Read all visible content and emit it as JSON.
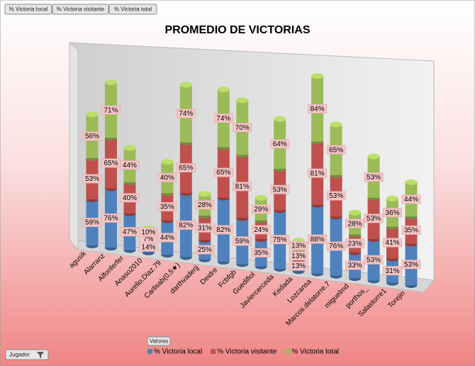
{
  "buttons": [
    "% Victoria local",
    "% Victoria visitante",
    "% Victoria total"
  ],
  "values_button": "Valores",
  "filter_button": "Jugador",
  "chart_data": {
    "type": "bar",
    "stacked": true,
    "title": "PROMEDIO DE VICTORIAS",
    "categories": [
      "agusik",
      "Alarranz",
      "Alfonferfer",
      "Anaso2010",
      "Aurelio.Diaz.79",
      "Carlisab(0,5★)",
      "darthvaderjj",
      "Deidre",
      "Fcbfgb",
      "Guedifiol",
      "Javiercerceda",
      "Kedada",
      "Lozcansa",
      "Marcos.delatorre.7",
      "miguelmd",
      "porthos_",
      "Salastorre1",
      "Torejin"
    ],
    "series": [
      {
        "name": "% Victoria local",
        "color": "#4f81bd",
        "values": [
          59,
          76,
          47,
          14,
          44,
          82,
          25,
          82,
          59,
          35,
          75,
          13,
          88,
          76,
          33,
          53,
          31,
          53
        ],
        "value_labels": [
          "59%",
          "76%",
          "47%",
          "14%",
          "44%",
          "82%",
          "25%",
          "82%",
          "59%",
          "35%",
          "75%",
          "13%",
          "88%",
          "76%",
          "33%",
          "53%",
          "31%",
          "53%"
        ]
      },
      {
        "name": "% Victoria visitante",
        "color": "#c0504d",
        "values": [
          53,
          65,
          40,
          7,
          35,
          65,
          31,
          65,
          81,
          24,
          53,
          13,
          81,
          53,
          23,
          53,
          41,
          35
        ],
        "value_labels": [
          "53%",
          "65%",
          "40%",
          "7%",
          "35%",
          "65%",
          "31%",
          "65%",
          "81%",
          "24%",
          "53%",
          "13%",
          "81%",
          "53%",
          "23%",
          "53%",
          "41%",
          "35%"
        ]
      },
      {
        "name": "% Victoria total",
        "color": "#9bbb59",
        "values": [
          56,
          71,
          44,
          10,
          40,
          74,
          28,
          74,
          70,
          29,
          64,
          13,
          84,
          65,
          28,
          53,
          36,
          44
        ],
        "value_labels": [
          "56%",
          "71%",
          "44%",
          "10%",
          "40%",
          "74%",
          "28%",
          "74%",
          "70%",
          "29%",
          "64%",
          "13%",
          "84%",
          "65%",
          "28%",
          "53%",
          "36%",
          "44%"
        ]
      }
    ]
  }
}
